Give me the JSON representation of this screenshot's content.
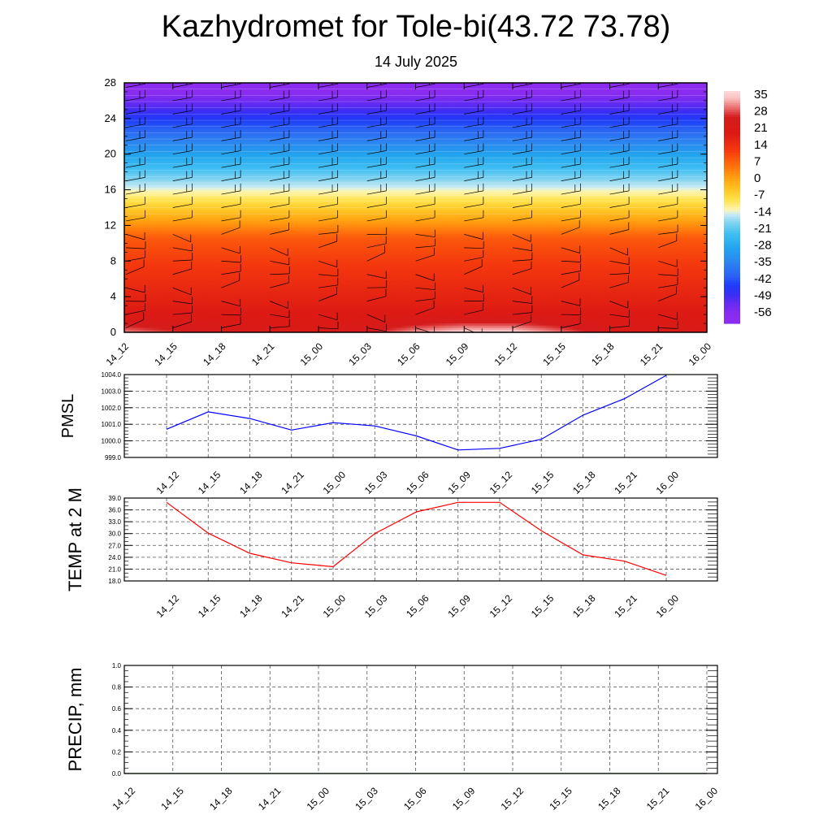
{
  "header": {
    "title": "Kazhydromet for Tole-bi(43.72 73.78)",
    "subtitle": "14 July 2025"
  },
  "chart_data": [
    {
      "type": "heatmap",
      "variable": "temperature cross-section with wind barbs",
      "x_categories": [
        "14_12",
        "14_15",
        "14_18",
        "14_21",
        "15_00",
        "15_03",
        "15_06",
        "15_09",
        "15_12",
        "15_15",
        "15_18",
        "15_21",
        "16_00"
      ],
      "ylim": [
        0,
        28
      ],
      "y_ticks": [
        "0",
        "4",
        "8",
        "12",
        "16",
        "20",
        "24",
        "28"
      ],
      "colorbar_labels": [
        "35",
        "28",
        "21",
        "14",
        "7",
        "0",
        "-7",
        "-14",
        "-21",
        "-28",
        "-35",
        "-42",
        "-49",
        "-56"
      ],
      "colorbar_range": [
        -60,
        38
      ],
      "surface_temp": [
        32,
        28,
        25,
        23,
        22,
        26,
        33,
        37,
        37,
        31,
        24,
        23,
        24
      ],
      "color_scale": [
        {
          "t": -60,
          "color": "#8c2cf0"
        },
        {
          "t": -56,
          "color": "#8a2cf0"
        },
        {
          "t": -52,
          "color": "#6a2af2"
        },
        {
          "t": -48,
          "color": "#3a2ef5"
        },
        {
          "t": -44,
          "color": "#1e3cf8"
        },
        {
          "t": -40,
          "color": "#2a62f5"
        },
        {
          "t": -34,
          "color": "#2c86f0"
        },
        {
          "t": -28,
          "color": "#22a6ee"
        },
        {
          "t": -22,
          "color": "#42bff2"
        },
        {
          "t": -17,
          "color": "#8ad6f0"
        },
        {
          "t": -14,
          "color": "#c8ecf5"
        },
        {
          "t": -12,
          "color": "#fff5b0"
        },
        {
          "t": -8,
          "color": "#ffe24a"
        },
        {
          "t": -3,
          "color": "#ffc120"
        },
        {
          "t": 2,
          "color": "#ff9a10"
        },
        {
          "t": 7,
          "color": "#ff6a0c"
        },
        {
          "t": 13,
          "color": "#f4380e"
        },
        {
          "t": 20,
          "color": "#dd1a14"
        },
        {
          "t": 27,
          "color": "#d41c1c"
        },
        {
          "t": 31,
          "color": "#ea7070"
        },
        {
          "t": 35,
          "color": "#fbc2c2"
        },
        {
          "t": 38,
          "color": "#ffdada"
        }
      ]
    },
    {
      "type": "line",
      "ylabel": "PMSL",
      "categories": [
        "14_12",
        "14_15",
        "14_18",
        "14_21",
        "15_00",
        "15_03",
        "15_06",
        "15_09",
        "15_12",
        "15_15",
        "15_18",
        "15_21",
        "16_00"
      ],
      "y_ticks": [
        "999.0",
        "1000.0",
        "1001.0",
        "1002.0",
        "1003.0",
        "1004.0"
      ],
      "ylim": [
        999.0,
        1004.0
      ],
      "series": [
        {
          "values": [
            1000.7,
            1001.75,
            1001.35,
            1000.65,
            1001.1,
            1000.9,
            1000.3,
            999.45,
            999.55,
            1000.1,
            1001.55,
            1002.55,
            1003.95
          ],
          "color": "#0000ff"
        }
      ],
      "grid": true
    },
    {
      "type": "line",
      "ylabel": "TEMP at 2 M",
      "categories": [
        "14_12",
        "14_15",
        "14_18",
        "14_21",
        "15_00",
        "15_03",
        "15_06",
        "15_09",
        "15_12",
        "15_15",
        "15_18",
        "15_21",
        "16_00"
      ],
      "y_ticks": [
        "18.0",
        "21.0",
        "24.0",
        "27.0",
        "30.0",
        "33.0",
        "36.0",
        "39.0"
      ],
      "ylim": [
        18.0,
        39.0
      ],
      "series": [
        {
          "values": [
            37.9,
            30.1,
            25.0,
            22.6,
            21.6,
            30.0,
            35.5,
            37.9,
            37.9,
            30.7,
            24.6,
            23.0,
            19.4
          ],
          "color": "#ff0000"
        }
      ],
      "grid": true
    },
    {
      "type": "line",
      "ylabel": "PRECIP, mm",
      "categories": [
        "14_12",
        "14_15",
        "14_18",
        "14_21",
        "15_00",
        "15_03",
        "15_06",
        "15_09",
        "15_12",
        "15_15",
        "15_18",
        "15_21",
        "16_00"
      ],
      "y_ticks": [
        "0.0",
        "0.2",
        "0.4",
        "0.6",
        "0.8",
        "1.0"
      ],
      "ylim": [
        0.0,
        1.0
      ],
      "series": [
        {
          "values": [
            0,
            0,
            0,
            0,
            0,
            0,
            0,
            0,
            0,
            0,
            0,
            0,
            0
          ],
          "color": "#006400"
        }
      ],
      "grid": true
    }
  ]
}
